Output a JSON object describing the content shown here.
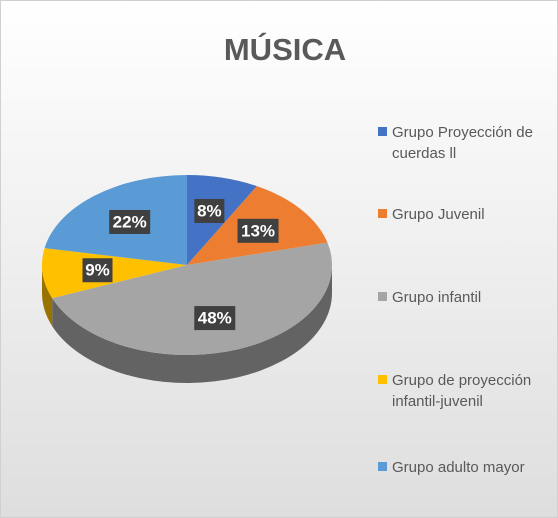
{
  "chart_data": {
    "type": "pie3d",
    "title": "MÚSICA",
    "categories": [
      "Grupo Proyección de cuerdas ll",
      "Grupo Juvenil",
      "Grupo infantil",
      "Grupo de proyección infantil-juvenil",
      "Grupo adulto mayor"
    ],
    "values": [
      8,
      13,
      48,
      9,
      22
    ],
    "value_labels": [
      "8%",
      "13%",
      "48%",
      "9%",
      "22%"
    ],
    "colors": [
      "#4472c4",
      "#ed7d31",
      "#a5a5a5",
      "#ffc000",
      "#5b9bd5"
    ],
    "legend": "right"
  }
}
